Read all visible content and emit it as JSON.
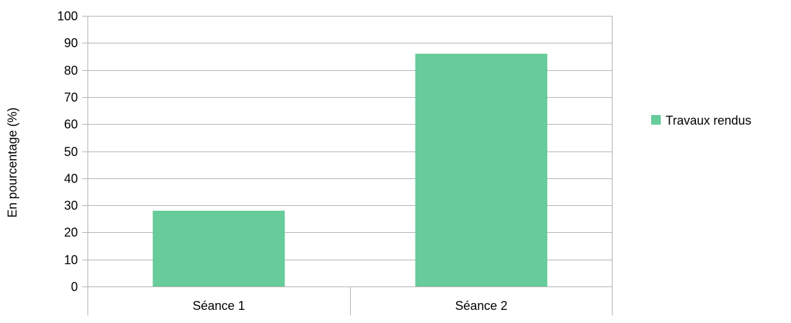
{
  "chart_data": {
    "type": "bar",
    "categories": [
      "Séance 1",
      "Séance 2"
    ],
    "series": [
      {
        "name": "Travaux rendus",
        "values": [
          28,
          86
        ],
        "color": "#66cc99"
      }
    ],
    "ylabel": "En pourcentage (%)",
    "xlabel": "",
    "ylim": [
      0,
      100
    ],
    "yticks": [
      0,
      10,
      20,
      30,
      40,
      50,
      60,
      70,
      80,
      90,
      100
    ],
    "grid": true,
    "legend_position": "right"
  }
}
